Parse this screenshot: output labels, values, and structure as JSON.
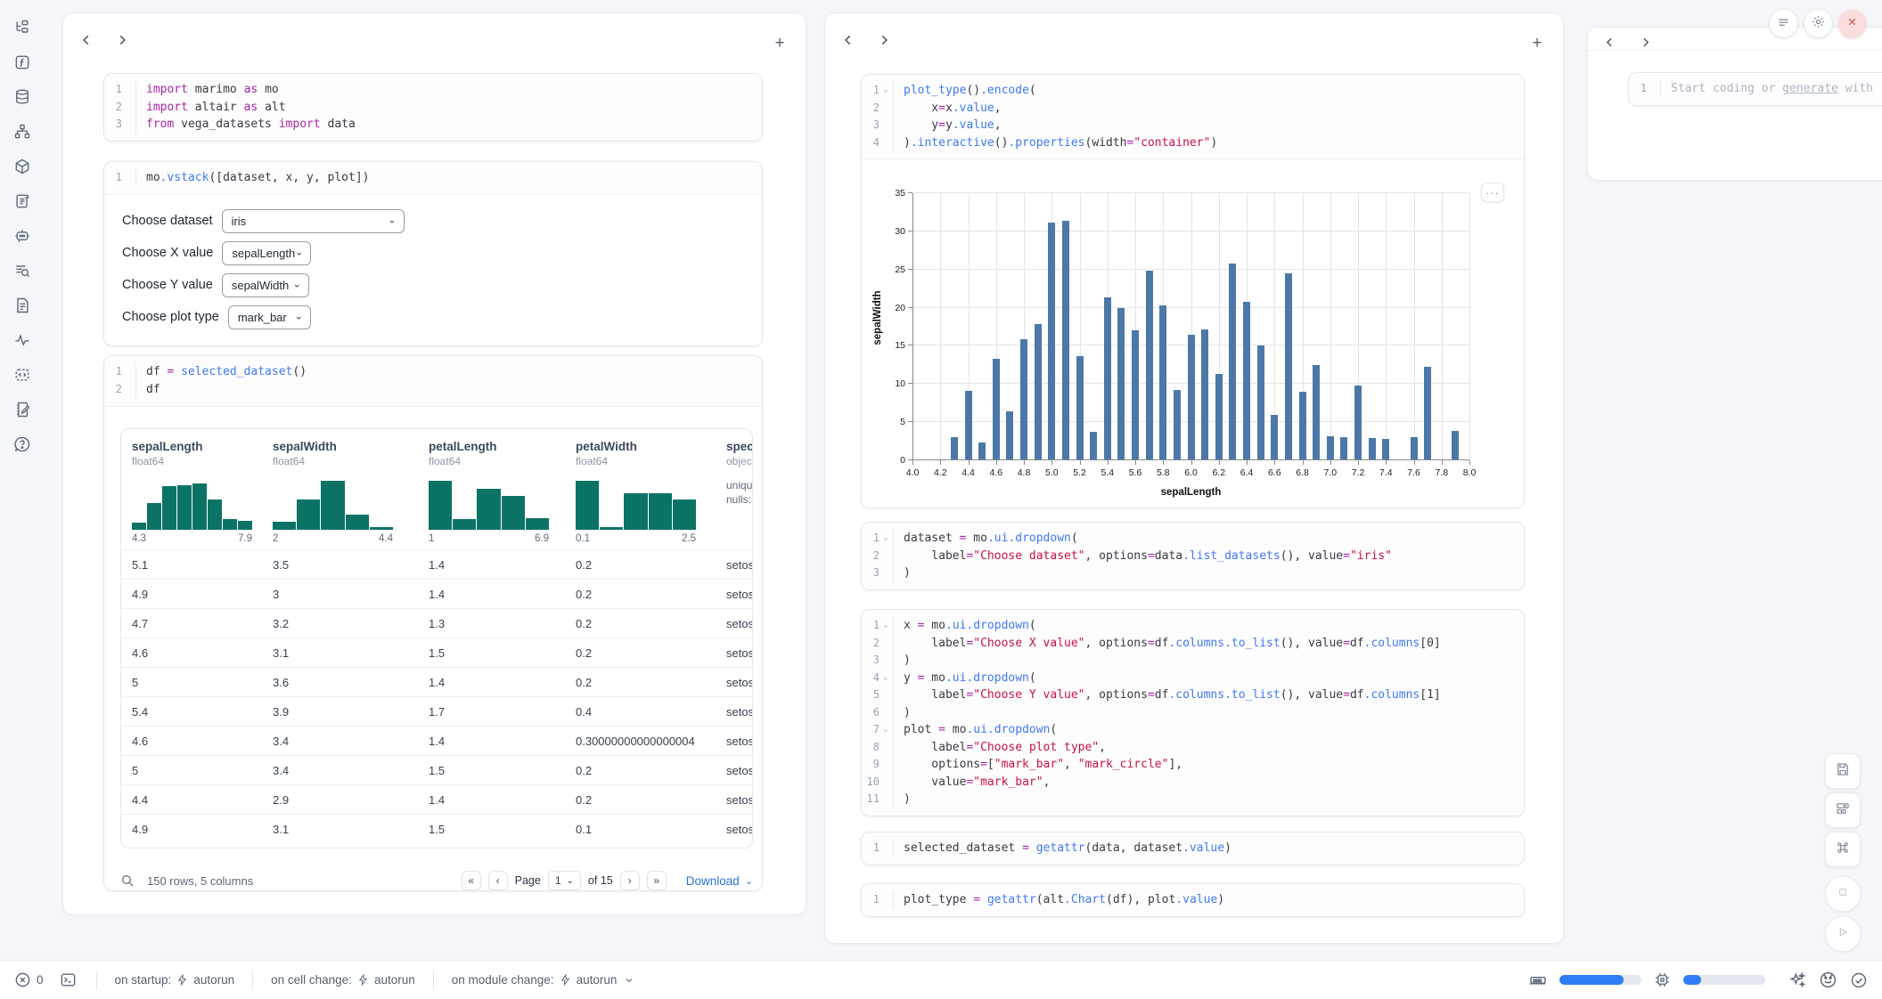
{
  "sidebar": {
    "icons": [
      "file-explorer",
      "functions",
      "datasources",
      "dependency-graph",
      "packages",
      "scratchpad-scroll",
      "chat-assistant",
      "logs-search",
      "documentation",
      "tracing",
      "snippets",
      "notebook-edit",
      "help"
    ]
  },
  "top_right": {
    "menu": "menu",
    "settings": "settings",
    "close": "close"
  },
  "left_panel": {
    "cells": [
      {
        "lines": [
          {
            "n": "1",
            "tokens": [
              [
                "kw",
                "import"
              ],
              [
                "v",
                " marimo "
              ],
              [
                "kw",
                "as"
              ],
              [
                "v",
                " mo"
              ]
            ]
          },
          {
            "n": "2",
            "tokens": [
              [
                "kw",
                "import"
              ],
              [
                "v",
                " altair "
              ],
              [
                "kw",
                "as"
              ],
              [
                "v",
                " alt"
              ]
            ]
          },
          {
            "n": "3",
            "tokens": [
              [
                "kw",
                "from"
              ],
              [
                "v",
                " vega_datasets "
              ],
              [
                "kw",
                "import"
              ],
              [
                "v",
                " data"
              ]
            ]
          }
        ]
      },
      {
        "lines": [
          {
            "n": "1",
            "tokens": [
              [
                "v",
                "mo"
              ],
              [
                "fn",
                ".vstack"
              ],
              [
                "v",
                "([dataset, x, y, plot])"
              ]
            ]
          }
        ]
      },
      {
        "lines": [
          {
            "n": "1",
            "tokens": [
              [
                "v",
                "df "
              ],
              [
                "op",
                "="
              ],
              [
                "v",
                " "
              ],
              [
                "fn",
                "selected_dataset"
              ],
              [
                "v",
                "()"
              ]
            ]
          },
          {
            "n": "2",
            "tokens": [
              [
                "v",
                "df"
              ]
            ]
          }
        ]
      }
    ],
    "controls": [
      {
        "label": "Choose dataset",
        "value": "iris"
      },
      {
        "label": "Choose X value",
        "value": "sepalLength"
      },
      {
        "label": "Choose Y value",
        "value": "sepalWidth"
      },
      {
        "label": "Choose plot type",
        "value": "mark_bar"
      }
    ],
    "table": {
      "columns": [
        {
          "name": "sepalLength",
          "dtype": "float64",
          "hist": {
            "min": "4.3",
            "max": "7.9",
            "bars": [
              0.14,
              0.52,
              0.84,
              0.86,
              0.9,
              0.58,
              0.2,
              0.18
            ]
          }
        },
        {
          "name": "sepalWidth",
          "dtype": "float64",
          "hist": {
            "min": "2",
            "max": "4.4",
            "bars": [
              0.15,
              0.58,
              0.95,
              0.3,
              0.06
            ]
          }
        },
        {
          "name": "petalLength",
          "dtype": "float64",
          "hist": {
            "min": "1",
            "max": "6.9",
            "bars": [
              0.95,
              0.2,
              0.8,
              0.65,
              0.22
            ]
          }
        },
        {
          "name": "petalWidth",
          "dtype": "float64",
          "hist": {
            "min": "0.1",
            "max": "2.5",
            "bars": [
              0.95,
              0.05,
              0.7,
              0.7,
              0.58
            ]
          }
        },
        {
          "name": "species",
          "dtype": "object",
          "stats": [
            "unique:",
            "nulls:"
          ]
        }
      ],
      "rows": [
        [
          "5.1",
          "3.5",
          "1.4",
          "0.2",
          "setosa"
        ],
        [
          "4.9",
          "3",
          "1.4",
          "0.2",
          "setosa"
        ],
        [
          "4.7",
          "3.2",
          "1.3",
          "0.2",
          "setosa"
        ],
        [
          "4.6",
          "3.1",
          "1.5",
          "0.2",
          "setosa"
        ],
        [
          "5",
          "3.6",
          "1.4",
          "0.2",
          "setosa"
        ],
        [
          "5.4",
          "3.9",
          "1.7",
          "0.4",
          "setosa"
        ],
        [
          "4.6",
          "3.4",
          "1.4",
          "0.30000000000000004",
          "setosa"
        ],
        [
          "5",
          "3.4",
          "1.5",
          "0.2",
          "setosa"
        ],
        [
          "4.4",
          "2.9",
          "1.4",
          "0.2",
          "setosa"
        ],
        [
          "4.9",
          "3.1",
          "1.5",
          "0.1",
          "setosa"
        ]
      ],
      "footer": {
        "summary": "150 rows, 5 columns",
        "page_label": "Page",
        "page_value": "1",
        "of_label": "of 15",
        "download_label": "Download"
      }
    }
  },
  "middle_panel": {
    "cells": [
      {
        "lines": [
          {
            "n": "1",
            "fold": true,
            "tokens": [
              [
                "fn",
                "plot_type"
              ],
              [
                "v",
                "()"
              ],
              [
                "fn",
                ".encode"
              ],
              [
                "v",
                "("
              ]
            ]
          },
          {
            "n": "2",
            "tokens": [
              [
                "v",
                "    x"
              ],
              [
                "op",
                "="
              ],
              [
                "v",
                "x"
              ],
              [
                "fn",
                ".value"
              ],
              [
                "v",
                ","
              ]
            ]
          },
          {
            "n": "3",
            "tokens": [
              [
                "v",
                "    y"
              ],
              [
                "op",
                "="
              ],
              [
                "v",
                "y"
              ],
              [
                "fn",
                ".value"
              ],
              [
                "v",
                ","
              ]
            ]
          },
          {
            "n": "4",
            "tokens": [
              [
                "v",
                ")"
              ],
              [
                "fn",
                ".interactive"
              ],
              [
                "v",
                "()"
              ],
              [
                "fn",
                ".properties"
              ],
              [
                "v",
                "(width"
              ],
              [
                "op",
                "="
              ],
              [
                "str",
                "\"container\""
              ],
              [
                "v",
                ")"
              ]
            ]
          }
        ]
      },
      {
        "lines": [
          {
            "n": "1",
            "fold": true,
            "tokens": [
              [
                "v",
                "dataset "
              ],
              [
                "op",
                "="
              ],
              [
                "v",
                " mo"
              ],
              [
                "fn",
                ".ui.dropdown"
              ],
              [
                "v",
                "("
              ]
            ]
          },
          {
            "n": "2",
            "tokens": [
              [
                "v",
                "    label"
              ],
              [
                "op",
                "="
              ],
              [
                "str",
                "\"Choose dataset\""
              ],
              [
                "v",
                ", options"
              ],
              [
                "op",
                "="
              ],
              [
                "v",
                "data"
              ],
              [
                "fn",
                ".list_datasets"
              ],
              [
                "v",
                "(), value"
              ],
              [
                "op",
                "="
              ],
              [
                "str",
                "\"iris\""
              ]
            ]
          },
          {
            "n": "3",
            "tokens": [
              [
                "v",
                ")"
              ]
            ]
          }
        ]
      },
      {
        "lines": [
          {
            "n": "1",
            "fold": true,
            "tokens": [
              [
                "v",
                "x "
              ],
              [
                "op",
                "="
              ],
              [
                "v",
                " mo"
              ],
              [
                "fn",
                ".ui.dropdown"
              ],
              [
                "v",
                "("
              ]
            ]
          },
          {
            "n": "2",
            "tokens": [
              [
                "v",
                "    label"
              ],
              [
                "op",
                "="
              ],
              [
                "str",
                "\"Choose X value\""
              ],
              [
                "v",
                ", options"
              ],
              [
                "op",
                "="
              ],
              [
                "v",
                "df"
              ],
              [
                "fn",
                ".columns.to_list"
              ],
              [
                "v",
                "(), value"
              ],
              [
                "op",
                "="
              ],
              [
                "v",
                "df"
              ],
              [
                "fn",
                ".columns"
              ],
              [
                "v",
                "[0]"
              ]
            ]
          },
          {
            "n": "3",
            "tokens": [
              [
                "v",
                ")"
              ]
            ]
          },
          {
            "n": "4",
            "fold": true,
            "tokens": [
              [
                "v",
                "y "
              ],
              [
                "op",
                "="
              ],
              [
                "v",
                " mo"
              ],
              [
                "fn",
                ".ui.dropdown"
              ],
              [
                "v",
                "("
              ]
            ]
          },
          {
            "n": "5",
            "tokens": [
              [
                "v",
                "    label"
              ],
              [
                "op",
                "="
              ],
              [
                "str",
                "\"Choose Y value\""
              ],
              [
                "v",
                ", options"
              ],
              [
                "op",
                "="
              ],
              [
                "v",
                "df"
              ],
              [
                "fn",
                ".columns.to_list"
              ],
              [
                "v",
                "(), value"
              ],
              [
                "op",
                "="
              ],
              [
                "v",
                "df"
              ],
              [
                "fn",
                ".columns"
              ],
              [
                "v",
                "[1]"
              ]
            ]
          },
          {
            "n": "6",
            "tokens": [
              [
                "v",
                ")"
              ]
            ]
          },
          {
            "n": "7",
            "fold": true,
            "tokens": [
              [
                "v",
                "plot "
              ],
              [
                "op",
                "="
              ],
              [
                "v",
                " mo"
              ],
              [
                "fn",
                ".ui.dropdown"
              ],
              [
                "v",
                "("
              ]
            ]
          },
          {
            "n": "8",
            "tokens": [
              [
                "v",
                "    label"
              ],
              [
                "op",
                "="
              ],
              [
                "str",
                "\"Choose plot type\""
              ],
              [
                "v",
                ","
              ]
            ]
          },
          {
            "n": "9",
            "tokens": [
              [
                "v",
                "    options"
              ],
              [
                "op",
                "="
              ],
              [
                "v",
                "["
              ],
              [
                "str",
                "\"mark_bar\""
              ],
              [
                "v",
                ", "
              ],
              [
                "str",
                "\"mark_circle\""
              ],
              [
                "v",
                "],"
              ]
            ]
          },
          {
            "n": "10",
            "tokens": [
              [
                "v",
                "    value"
              ],
              [
                "op",
                "="
              ],
              [
                "str",
                "\"mark_bar\""
              ],
              [
                "v",
                ","
              ]
            ]
          },
          {
            "n": "11",
            "tokens": [
              [
                "v",
                ")"
              ]
            ]
          }
        ]
      },
      {
        "lines": [
          {
            "n": "1",
            "tokens": [
              [
                "v",
                "selected_dataset "
              ],
              [
                "op",
                "="
              ],
              [
                "v",
                " "
              ],
              [
                "fn",
                "getattr"
              ],
              [
                "v",
                "(data, dataset"
              ],
              [
                "fn",
                ".value"
              ],
              [
                "v",
                ")"
              ]
            ]
          }
        ]
      },
      {
        "lines": [
          {
            "n": "1",
            "tokens": [
              [
                "v",
                "plot_type "
              ],
              [
                "op",
                "="
              ],
              [
                "v",
                " "
              ],
              [
                "fn",
                "getattr"
              ],
              [
                "v",
                "(alt"
              ],
              [
                "fn",
                ".Chart"
              ],
              [
                "v",
                "(df), plot"
              ],
              [
                "fn",
                ".value"
              ],
              [
                "v",
                ")"
              ]
            ]
          }
        ]
      }
    ]
  },
  "chart_data": {
    "type": "bar",
    "xlabel": "sepalLength",
    "ylabel": "sepalWidth",
    "xlim": [
      4.0,
      8.0
    ],
    "ylim": [
      0,
      35
    ],
    "x_ticks": [
      4.0,
      4.2,
      4.4,
      4.6,
      4.8,
      5.0,
      5.2,
      5.4,
      5.6,
      5.8,
      6.0,
      6.2,
      6.4,
      6.6,
      6.8,
      7.0,
      7.2,
      7.4,
      7.6,
      7.8,
      8.0
    ],
    "y_ticks": [
      0,
      5,
      10,
      15,
      20,
      25,
      30,
      35
    ],
    "bar_color": "#4c78a8",
    "grid": true,
    "x": [
      4.3,
      4.4,
      4.5,
      4.6,
      4.7,
      4.8,
      4.9,
      5.0,
      5.1,
      5.2,
      5.3,
      5.4,
      5.5,
      5.6,
      5.7,
      5.8,
      5.9,
      6.0,
      6.1,
      6.2,
      6.3,
      6.4,
      6.5,
      6.6,
      6.7,
      6.8,
      6.9,
      7.0,
      7.1,
      7.2,
      7.3,
      7.4,
      7.6,
      7.7,
      7.9
    ],
    "y": [
      3.0,
      9.1,
      2.3,
      13.3,
      6.4,
      15.9,
      17.8,
      31.2,
      31.4,
      13.7,
      3.7,
      21.4,
      20.0,
      17.0,
      24.9,
      20.3,
      9.2,
      16.4,
      17.1,
      11.3,
      25.8,
      20.8,
      15.0,
      6.0,
      24.5,
      9.0,
      12.5,
      3.2,
      3.0,
      9.8,
      2.9,
      2.8,
      3.0,
      12.2,
      3.8
    ]
  },
  "right_panel": {
    "line_number": "1",
    "placeholder_prefix": "Start coding or ",
    "placeholder_link": "generate",
    "placeholder_suffix": " with"
  },
  "statusbar": {
    "error_count": "0",
    "on_startup_label": "on startup:",
    "on_startup_value": "autorun",
    "on_cell_change_label": "on cell change:",
    "on_cell_change_value": "autorun",
    "on_module_change_label": "on module change:",
    "on_module_change_value": "autorun",
    "ram_pct": 78,
    "cpu_pct": 22
  }
}
